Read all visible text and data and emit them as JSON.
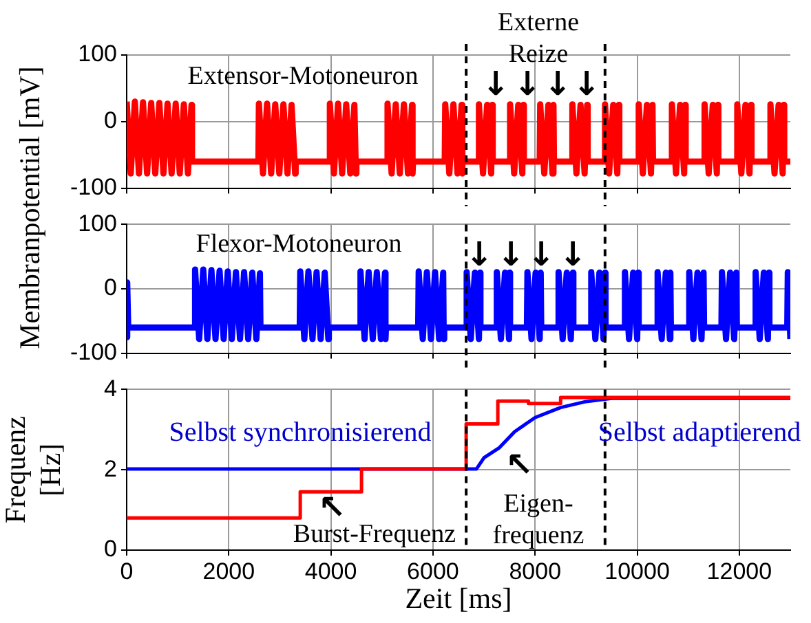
{
  "chart_data": [
    {
      "type": "line",
      "ylabel": "Membranpotential [mV]",
      "xlim": [
        0,
        13000
      ],
      "xticks": [
        0,
        2000,
        4000,
        6000,
        8000,
        10000,
        12000
      ],
      "ylim": [
        -100,
        100
      ],
      "yticks": [
        -100,
        0,
        100
      ],
      "grid": true,
      "legend": false,
      "marker": "none",
      "tick_labels": "y",
      "series": [
        {
          "color": "#ff0000",
          "x": [
            0,
            80,
            160,
            240,
            320,
            400,
            480,
            560,
            640,
            720,
            800,
            880,
            960,
            1040,
            1120,
            1200,
            1270,
            1280,
            2580,
            2590,
            2670,
            2750,
            2830,
            2910,
            2990,
            3070,
            3150,
            3230,
            3300,
            3310,
            3970,
            3980,
            4060,
            4140,
            4220,
            4300,
            4380,
            4460,
            4490,
            4500,
            5100,
            5110,
            5190,
            5270,
            5350,
            5430,
            5510,
            5590,
            5600,
            5610,
            6230,
            6240,
            6320,
            6400,
            6480,
            6560,
            6570,
            6580,
            6890,
            6900,
            6980,
            7060,
            7140,
            7160,
            7170,
            7500,
            7510,
            7590,
            7670,
            7750,
            7770,
            7780,
            8090,
            8100,
            8180,
            8260,
            8340,
            8360,
            8370,
            8720,
            8730,
            8810,
            8890,
            8970,
            9020,
            9030,
            9360,
            9370,
            9450,
            9530,
            9610,
            9640,
            9650,
            10020,
            10030,
            10110,
            10190,
            10270,
            10300,
            10310,
            10670,
            10680,
            10760,
            10840,
            10920,
            10940,
            10950,
            11310,
            11320,
            11400,
            11480,
            11560,
            11580,
            11590,
            11950,
            11960,
            12040,
            12120,
            12200,
            12230,
            12240,
            12600,
            12610,
            12690,
            12770,
            12850,
            12870,
            12880,
            13000
          ],
          "values": [
            30,
            -78,
            30,
            -78,
            29,
            -78,
            28,
            -78,
            28,
            -78,
            27,
            -78,
            27,
            -78,
            26,
            -78,
            25,
            -60,
            -60,
            27,
            -78,
            27,
            -78,
            26,
            -78,
            26,
            -78,
            25,
            -78,
            -60,
            -60,
            27,
            -78,
            27,
            -78,
            26,
            -78,
            25,
            -78,
            -60,
            -60,
            27,
            -78,
            26,
            -78,
            26,
            -78,
            25,
            -78,
            -60,
            -60,
            26,
            -78,
            26,
            -78,
            25,
            -78,
            -60,
            -60,
            26,
            -78,
            25,
            -78,
            25,
            -60,
            -60,
            26,
            -78,
            25,
            -78,
            25,
            -60,
            -60,
            26,
            -78,
            25,
            -78,
            25,
            -60,
            -60,
            26,
            -78,
            25,
            -78,
            25,
            -60,
            -60,
            26,
            -78,
            25,
            -78,
            25,
            -60,
            -60,
            26,
            -78,
            25,
            -78,
            25,
            -60,
            -60,
            26,
            -78,
            25,
            -78,
            25,
            -60,
            -60,
            26,
            -78,
            25,
            -78,
            25,
            -60,
            -60,
            26,
            -78,
            25,
            -78,
            25,
            -60,
            -60,
            26,
            -78,
            25,
            -78,
            25,
            -60,
            -60
          ]
        }
      ],
      "ref_lines": [
        {
          "axis": "x",
          "value": 6650,
          "color": "#000000",
          "line_style": "dashed"
        },
        {
          "axis": "x",
          "value": 9370,
          "color": "#000000",
          "line_style": "dashed"
        }
      ],
      "annotations": [
        "Extensor-Motoneuron",
        "Externe\nReize",
        "↓",
        "↓",
        "↓",
        "↓"
      ]
    },
    {
      "type": "line",
      "xlim": [
        0,
        13000
      ],
      "xticks": [
        0,
        2000,
        4000,
        6000,
        8000,
        10000,
        12000
      ],
      "ylim": [
        -100,
        100
      ],
      "yticks": [
        -100,
        0,
        100
      ],
      "grid": true,
      "legend": false,
      "marker": "none",
      "tick_labels": "y",
      "series": [
        {
          "color": "#0000ff",
          "x": [
            0,
            10,
            30,
            1330,
            1340,
            1420,
            1500,
            1580,
            1660,
            1740,
            1820,
            1900,
            1980,
            2060,
            2140,
            2220,
            2300,
            2380,
            2460,
            2540,
            2610,
            2620,
            3390,
            3400,
            3480,
            3560,
            3640,
            3720,
            3800,
            3880,
            3950,
            3960,
            4570,
            4580,
            4660,
            4740,
            4820,
            4900,
            4980,
            5060,
            5070,
            5080,
            5710,
            5720,
            5800,
            5880,
            5960,
            6040,
            6120,
            6200,
            6210,
            6220,
            6650,
            6660,
            6740,
            6820,
            6900,
            6920,
            6930,
            7240,
            7250,
            7330,
            7410,
            7490,
            7500,
            7510,
            7840,
            7850,
            7930,
            8010,
            8090,
            8110,
            8120,
            8450,
            8460,
            8540,
            8620,
            8700,
            8740,
            8750,
            9090,
            9100,
            9180,
            9260,
            9340,
            9370,
            9380,
            9750,
            9760,
            9840,
            9920,
            10000,
            10020,
            10030,
            10390,
            10400,
            10480,
            10560,
            10640,
            10650,
            10660,
            11010,
            11020,
            11100,
            11180,
            11260,
            11300,
            11310,
            11650,
            11660,
            11740,
            11820,
            11900,
            11940,
            11950,
            12310,
            12320,
            12400,
            12480,
            12560,
            12580,
            12590,
            12940,
            12950,
            13000
          ],
          "values": [
            -75,
            10,
            -60,
            -60,
            30,
            -78,
            30,
            -78,
            29,
            -78,
            28,
            -78,
            27,
            -78,
            26,
            -78,
            26,
            -78,
            25,
            -78,
            24,
            -60,
            -60,
            27,
            -78,
            27,
            -78,
            26,
            -78,
            25,
            -78,
            -60,
            -60,
            27,
            -78,
            26,
            -78,
            26,
            -78,
            25,
            -78,
            -60,
            -60,
            27,
            -78,
            26,
            -78,
            26,
            -78,
            25,
            -78,
            -60,
            -60,
            26,
            -78,
            25,
            -78,
            25,
            -60,
            -60,
            26,
            -78,
            25,
            -78,
            25,
            -60,
            -60,
            26,
            -78,
            25,
            -78,
            25,
            -60,
            -60,
            26,
            -78,
            25,
            -78,
            25,
            -60,
            -60,
            26,
            -78,
            25,
            -78,
            25,
            -60,
            -60,
            26,
            -78,
            25,
            -78,
            25,
            -60,
            -60,
            26,
            -78,
            25,
            -78,
            25,
            -60,
            -60,
            26,
            -78,
            25,
            -78,
            25,
            -60,
            -60,
            26,
            -78,
            25,
            -78,
            25,
            -60,
            -60,
            26,
            -78,
            25,
            -78,
            25,
            -60,
            -60,
            26,
            -78
          ]
        }
      ],
      "ref_lines": [
        {
          "axis": "x",
          "value": 6650,
          "color": "#000000",
          "line_style": "dashed"
        },
        {
          "axis": "x",
          "value": 9370,
          "color": "#000000",
          "line_style": "dashed"
        }
      ],
      "annotations": [
        "Flexor-Motoneuron",
        "↓",
        "↓",
        "↓",
        "↓"
      ]
    },
    {
      "type": "line",
      "xlabel": "Zeit [ms]",
      "ylabel": "Frequenz [Hz]",
      "xlim": [
        0,
        13000
      ],
      "xticks": [
        0,
        2000,
        4000,
        6000,
        8000,
        10000,
        12000
      ],
      "ylim": [
        0,
        4
      ],
      "yticks": [
        0,
        2,
        4
      ],
      "grid": true,
      "legend": false,
      "marker": "none",
      "series": [
        {
          "type": "step",
          "color": "#ff0000",
          "x": [
            0,
            3400,
            4600,
            6650,
            7270,
            7870,
            8500,
            13000
          ],
          "values": [
            0.8,
            1.45,
            2.02,
            3.14,
            3.71,
            3.65,
            3.8,
            3.8
          ]
        },
        {
          "color": "#0000ff",
          "x": [
            0,
            6850,
            7000,
            7300,
            7600,
            8000,
            8500,
            9000,
            9500,
            13000
          ],
          "values": [
            2.02,
            2.02,
            2.3,
            2.55,
            2.95,
            3.3,
            3.55,
            3.7,
            3.78,
            3.78
          ]
        }
      ],
      "ref_lines": [
        {
          "axis": "x",
          "value": 6650,
          "color": "#000000",
          "line_style": "dashed"
        },
        {
          "axis": "x",
          "value": 9370,
          "color": "#000000",
          "line_style": "dashed"
        }
      ],
      "annotations": [
        "Selbst synchronisierend",
        "Selbst adaptierend",
        "Burst-Frequenz",
        "↖",
        "Eigen-\nfrequenz",
        "↖"
      ]
    }
  ]
}
